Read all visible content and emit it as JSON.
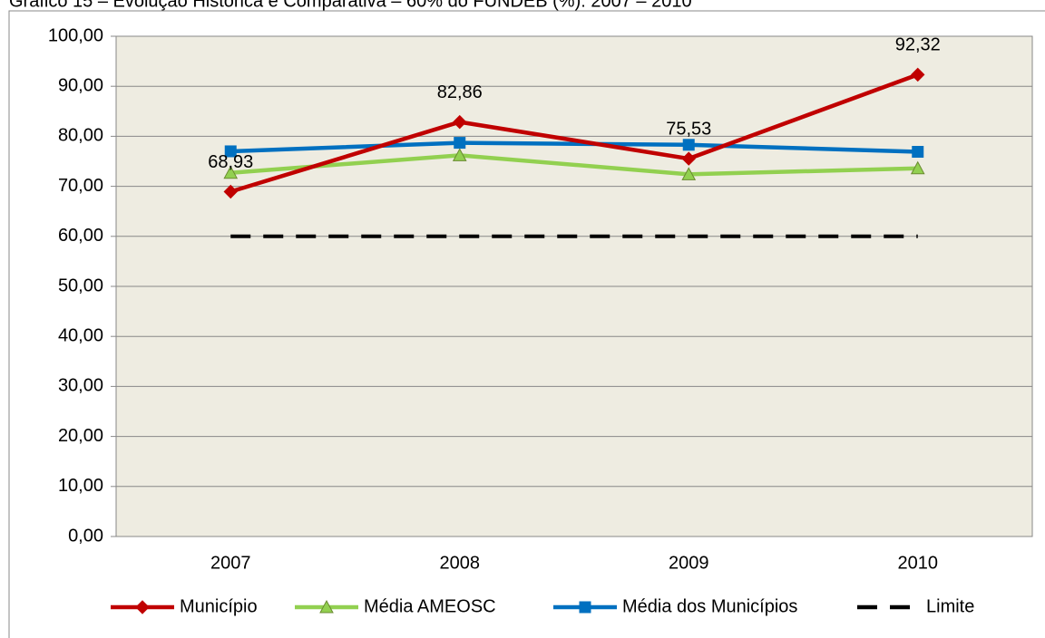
{
  "chart_data": {
    "type": "line",
    "title": "Gráfico 15 – Evolução Histórica e Comparativa – 60% do FUNDEB (%): 2007 – 2010",
    "categories": [
      "2007",
      "2008",
      "2009",
      "2010"
    ],
    "series": [
      {
        "name": "Município",
        "color": "#c00000",
        "marker": "diamond",
        "values": [
          68.93,
          82.86,
          75.53,
          92.32
        ],
        "value_labels": [
          "68,93",
          "82,86",
          "75,53",
          "92,32"
        ]
      },
      {
        "name": "Média AMEOSC",
        "color": "#92d050",
        "marker": "triangle",
        "values": [
          72.7,
          76.2,
          72.4,
          73.6
        ]
      },
      {
        "name": "Média dos Municípios",
        "color": "#0070c0",
        "marker": "square",
        "values": [
          77.0,
          78.7,
          78.3,
          76.9
        ]
      },
      {
        "name": "Limite",
        "color": "#000000",
        "marker": "none",
        "dash": true,
        "values": [
          60,
          60,
          60,
          60
        ]
      }
    ],
    "ylim": [
      0,
      100
    ],
    "yticks": [
      {
        "value": 0,
        "label": "0,00"
      },
      {
        "value": 10,
        "label": "10,00"
      },
      {
        "value": 20,
        "label": "20,00"
      },
      {
        "value": 30,
        "label": "30,00"
      },
      {
        "value": 40,
        "label": "40,00"
      },
      {
        "value": 50,
        "label": "50,00"
      },
      {
        "value": 60,
        "label": "60,00"
      },
      {
        "value": 70,
        "label": "70,00"
      },
      {
        "value": 80,
        "label": "80,00"
      },
      {
        "value": 90,
        "label": "90,00"
      },
      {
        "value": 100,
        "label": "100,00"
      }
    ],
    "grid": true,
    "legend": "bottom",
    "background": "#eeece1"
  }
}
